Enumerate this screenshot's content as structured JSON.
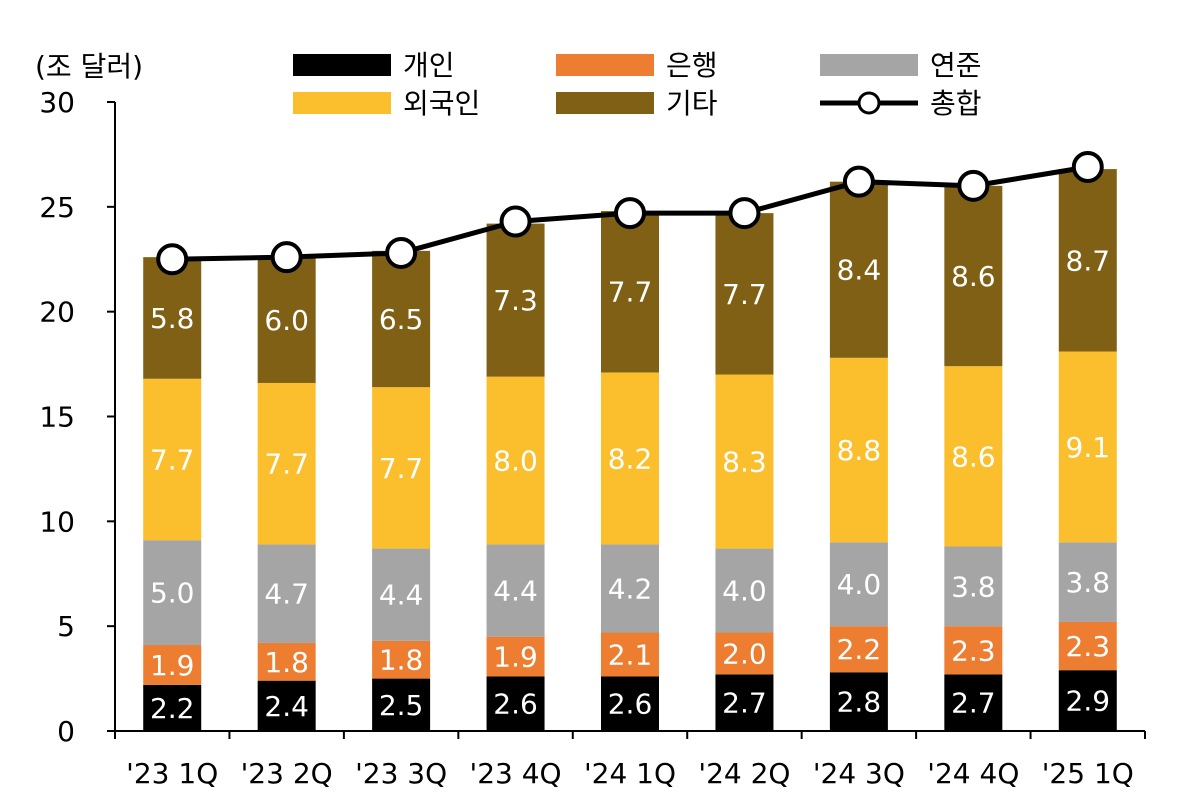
{
  "chart_data": {
    "type": "bar",
    "stacked": true,
    "unit_label": "(조 달러)",
    "categories": [
      "'23 1Q",
      "'23 2Q",
      "'23 3Q",
      "'23 4Q",
      "'24 1Q",
      "'24 2Q",
      "'24 3Q",
      "'24 4Q",
      "'25 1Q"
    ],
    "ylim": [
      0,
      30
    ],
    "yticks": [
      0,
      5,
      10,
      15,
      20,
      25,
      30
    ],
    "grid": false,
    "legend_position": "top",
    "series": [
      {
        "name": "개인",
        "color": "#000000",
        "values": [
          2.2,
          2.4,
          2.5,
          2.6,
          2.6,
          2.7,
          2.8,
          2.7,
          2.9
        ]
      },
      {
        "name": "은행",
        "color": "#ED7D31",
        "values": [
          1.9,
          1.8,
          1.8,
          1.9,
          2.1,
          2.0,
          2.2,
          2.3,
          2.3
        ]
      },
      {
        "name": "연준",
        "color": "#A5A5A5",
        "values": [
          5.0,
          4.7,
          4.4,
          4.4,
          4.2,
          4.0,
          4.0,
          3.8,
          3.8
        ]
      },
      {
        "name": "외국인",
        "color": "#FBBF2E",
        "values": [
          7.7,
          7.7,
          7.7,
          8.0,
          8.2,
          8.3,
          8.8,
          8.6,
          9.1
        ]
      },
      {
        "name": "기타",
        "color": "#7F6015",
        "values": [
          5.8,
          6.0,
          6.5,
          7.3,
          7.7,
          7.7,
          8.4,
          8.6,
          8.7
        ]
      }
    ],
    "line_series": {
      "name": "총합",
      "color": "#000000",
      "values": [
        22.5,
        22.6,
        22.8,
        24.3,
        24.7,
        24.7,
        26.2,
        26.0,
        26.9
      ]
    }
  }
}
